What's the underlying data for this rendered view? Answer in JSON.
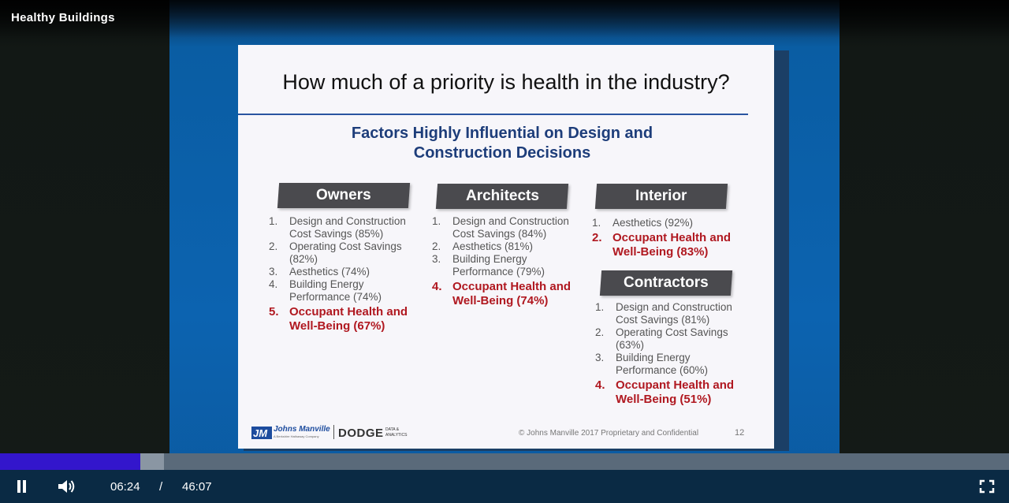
{
  "player": {
    "title": "Healthy Buildings",
    "current_time": "06:24",
    "time_separator": "/",
    "duration": "46:07",
    "progress_played_fraction": 0.139,
    "progress_buffered_fraction": 0.1625,
    "accent_color": "#3316cc"
  },
  "slide": {
    "title": "How much of a priority is health in the industry?",
    "subtitle_line1": "Factors Highly Influential on Design and",
    "subtitle_line2": "Construction Decisions",
    "copyright": "© Johns Manville 2017 Proprietary and Confidential",
    "page_number": "12",
    "logo_jm": "Johns Manville",
    "logo_jm_tag": "A Berkshire Hathaway Company",
    "logo_dodge": "DODGE",
    "logo_dodge_tag1": "DATA &",
    "logo_dodge_tag2": "ANALYTICS",
    "highlight_color": "#b01820",
    "groups": {
      "owners": {
        "header": "Owners",
        "items": [
          {
            "num": "1.",
            "text": "Design and Construction Cost Savings (85%)"
          },
          {
            "num": "2.",
            "text": "Operating Cost Savings (82%)"
          },
          {
            "num": "3.",
            "text": "Aesthetics (74%)"
          },
          {
            "num": "4.",
            "text": "Building Energy Performance (74%)"
          },
          {
            "num": "5.",
            "text": "Occupant Health and Well-Being (67%)"
          }
        ]
      },
      "architects": {
        "header": "Architects",
        "items": [
          {
            "num": "1.",
            "text": "Design and Construction Cost Savings (84%)"
          },
          {
            "num": "2.",
            "text": "Aesthetics (81%)"
          },
          {
            "num": "3.",
            "text": "Building Energy Performance (79%)"
          },
          {
            "num": "4.",
            "text": "Occupant Health and Well-Being (74%)"
          }
        ]
      },
      "interior": {
        "header": "Interior",
        "items": [
          {
            "num": "1.",
            "text": "Aesthetics (92%)"
          },
          {
            "num": "2.",
            "text": "Occupant Health and Well-Being (83%)"
          }
        ]
      },
      "contractors": {
        "header": "Contractors",
        "items": [
          {
            "num": "1.",
            "text": "Design and Construction Cost Savings (81%)"
          },
          {
            "num": "2.",
            "text": "Operating Cost Savings (63%)"
          },
          {
            "num": "3.",
            "text": "Building Energy Performance (60%)"
          },
          {
            "num": "4.",
            "text": "Occupant Health and Well-Being (51%)"
          }
        ]
      }
    }
  },
  "icons": {
    "pause": "pause-icon",
    "volume": "volume-icon",
    "fullscreen": "fullscreen-icon"
  }
}
